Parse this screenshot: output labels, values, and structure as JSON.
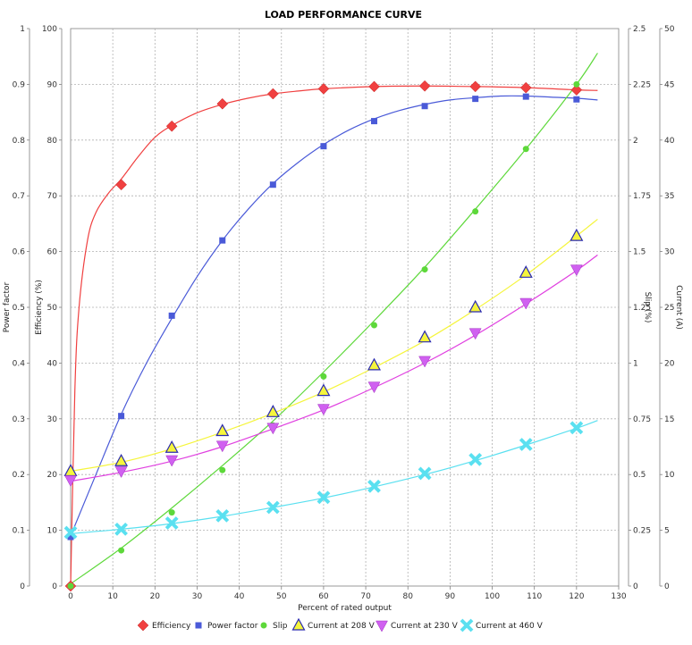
{
  "chart_data": {
    "type": "line",
    "title": "LOAD PERFORMANCE CURVE",
    "xlabel": "Percent of rated output",
    "xlim": [
      0,
      130
    ],
    "x_ticks": [
      0,
      10,
      20,
      30,
      40,
      50,
      60,
      70,
      80,
      90,
      100,
      110,
      120,
      130
    ],
    "axes": {
      "power_factor": {
        "label": "Power factor",
        "lim": [
          0,
          1
        ],
        "ticks": [
          "0",
          "0.1",
          "0.2",
          "0.3",
          "0.4",
          "0.5",
          "0.6",
          "0.7",
          "0.8",
          "0.9",
          "1"
        ]
      },
      "efficiency": {
        "label": "Efficiency (%)",
        "lim": [
          0,
          100
        ],
        "ticks": [
          "0",
          "10",
          "20",
          "30",
          "40",
          "50",
          "60",
          "70",
          "80",
          "90",
          "100"
        ]
      },
      "slip": {
        "label": "Slip (%)",
        "lim": [
          0,
          2.5
        ],
        "ticks": [
          "0",
          "0.25",
          "0.5",
          "0.75",
          "1",
          "1.25",
          "1.5",
          "1.75",
          "2",
          "2.25",
          "2.5"
        ]
      },
      "current": {
        "label": "Current (A)",
        "lim": [
          0,
          50
        ],
        "ticks": [
          "0",
          "5",
          "10",
          "15",
          "20",
          "25",
          "30",
          "35",
          "40",
          "45",
          "50"
        ]
      }
    },
    "grid": true,
    "legend_position": "bottom",
    "series": [
      {
        "name": "Efficiency",
        "axis": "efficiency",
        "color": "#f04040",
        "marker": "diamond",
        "points": [
          [
            0,
            0
          ],
          [
            12,
            72
          ],
          [
            24,
            82.5
          ],
          [
            36,
            86.5
          ],
          [
            48,
            88.3
          ],
          [
            60,
            89.2
          ],
          [
            72,
            89.6
          ],
          [
            84,
            89.7
          ],
          [
            96,
            89.6
          ],
          [
            108,
            89.4
          ],
          [
            120,
            89
          ]
        ],
        "curve": [
          [
            0,
            0
          ],
          [
            1,
            35
          ],
          [
            2,
            50
          ],
          [
            4,
            62
          ],
          [
            6,
            67
          ],
          [
            9,
            70.5
          ],
          [
            12,
            73
          ],
          [
            16,
            77
          ],
          [
            20,
            80.5
          ],
          [
            24,
            82.6
          ],
          [
            30,
            84.9
          ],
          [
            36,
            86.4
          ],
          [
            42,
            87.5
          ],
          [
            48,
            88.3
          ],
          [
            54,
            88.8
          ],
          [
            60,
            89.2
          ],
          [
            72,
            89.6
          ],
          [
            84,
            89.7
          ],
          [
            96,
            89.6
          ],
          [
            108,
            89.4
          ],
          [
            120,
            89
          ],
          [
            125,
            88.9
          ]
        ]
      },
      {
        "name": "Power factor",
        "axis": "power_factor",
        "color": "#4a5ad8",
        "marker": "square",
        "points": [
          [
            0,
            0.088
          ],
          [
            12,
            0.305
          ],
          [
            24,
            0.485
          ],
          [
            36,
            0.62
          ],
          [
            48,
            0.72
          ],
          [
            60,
            0.789
          ],
          [
            72,
            0.834
          ],
          [
            84,
            0.861
          ],
          [
            96,
            0.874
          ],
          [
            108,
            0.878
          ],
          [
            120,
            0.873
          ]
        ],
        "curve": [
          [
            0,
            0.09
          ],
          [
            6,
            0.2
          ],
          [
            12,
            0.308
          ],
          [
            18,
            0.4
          ],
          [
            24,
            0.48
          ],
          [
            30,
            0.555
          ],
          [
            36,
            0.62
          ],
          [
            42,
            0.675
          ],
          [
            48,
            0.722
          ],
          [
            54,
            0.76
          ],
          [
            60,
            0.792
          ],
          [
            66,
            0.818
          ],
          [
            72,
            0.838
          ],
          [
            78,
            0.853
          ],
          [
            84,
            0.864
          ],
          [
            90,
            0.872
          ],
          [
            96,
            0.876
          ],
          [
            102,
            0.879
          ],
          [
            108,
            0.879
          ],
          [
            114,
            0.877
          ],
          [
            120,
            0.875
          ],
          [
            125,
            0.872
          ]
        ]
      },
      {
        "name": "Slip",
        "axis": "slip",
        "color": "#5dd83a",
        "marker": "circle",
        "points": [
          [
            0,
            0
          ],
          [
            12,
            0.16
          ],
          [
            24,
            0.33
          ],
          [
            36,
            0.52
          ],
          [
            48,
            0.72
          ],
          [
            60,
            0.94
          ],
          [
            72,
            1.17
          ],
          [
            84,
            1.42
          ],
          [
            96,
            1.68
          ],
          [
            108,
            1.96
          ],
          [
            120,
            2.25
          ]
        ],
        "curve": [
          [
            0,
            0.01
          ],
          [
            12,
            0.17
          ],
          [
            24,
            0.35
          ],
          [
            36,
            0.54
          ],
          [
            48,
            0.74
          ],
          [
            60,
            0.96
          ],
          [
            72,
            1.19
          ],
          [
            84,
            1.43
          ],
          [
            96,
            1.69
          ],
          [
            108,
            1.96
          ],
          [
            120,
            2.25
          ],
          [
            125,
            2.39
          ]
        ]
      },
      {
        "name": "Current at 208 V",
        "axis": "current",
        "color": "#f5f53c",
        "marker": "triangle-up",
        "marker_stroke": "#2a2ab0",
        "points": [
          [
            0,
            10.3
          ],
          [
            12,
            11.2
          ],
          [
            24,
            12.4
          ],
          [
            36,
            13.9
          ],
          [
            48,
            15.6
          ],
          [
            60,
            17.5
          ],
          [
            72,
            19.8
          ],
          [
            84,
            22.3
          ],
          [
            96,
            25
          ],
          [
            108,
            28.1
          ],
          [
            120,
            31.4
          ]
        ],
        "curve": [
          [
            0,
            10.3
          ],
          [
            12,
            11.1
          ],
          [
            24,
            12.3
          ],
          [
            36,
            13.8
          ],
          [
            48,
            15.5
          ],
          [
            60,
            17.4
          ],
          [
            72,
            19.6
          ],
          [
            84,
            22
          ],
          [
            96,
            24.8
          ],
          [
            108,
            27.9
          ],
          [
            120,
            31.4
          ],
          [
            125,
            32.9
          ]
        ]
      },
      {
        "name": "Current at 230 V",
        "axis": "current",
        "color": "#e040e0",
        "marker": "triangle-down",
        "marker_fill": "#d060f0",
        "points": [
          [
            0,
            9.5
          ],
          [
            12,
            10.3
          ],
          [
            24,
            11.3
          ],
          [
            36,
            12.6
          ],
          [
            48,
            14.2
          ],
          [
            60,
            15.9
          ],
          [
            72,
            17.9
          ],
          [
            84,
            20.2
          ],
          [
            96,
            22.7
          ],
          [
            108,
            25.4
          ],
          [
            120,
            28.4
          ]
        ],
        "curve": [
          [
            0,
            9.4
          ],
          [
            12,
            10.2
          ],
          [
            24,
            11.2
          ],
          [
            36,
            12.5
          ],
          [
            48,
            14.1
          ],
          [
            60,
            15.8
          ],
          [
            72,
            17.8
          ],
          [
            84,
            20
          ],
          [
            96,
            22.5
          ],
          [
            108,
            25.3
          ],
          [
            120,
            28.3
          ],
          [
            125,
            29.7
          ]
        ]
      },
      {
        "name": "Current at 460 V",
        "axis": "current",
        "color": "#5ae0f0",
        "marker": "x",
        "points": [
          [
            0,
            4.8
          ],
          [
            12,
            5.1
          ],
          [
            24,
            5.65
          ],
          [
            36,
            6.3
          ],
          [
            48,
            7.05
          ],
          [
            60,
            7.95
          ],
          [
            72,
            8.95
          ],
          [
            84,
            10.1
          ],
          [
            96,
            11.35
          ],
          [
            108,
            12.7
          ],
          [
            120,
            14.2
          ]
        ],
        "curve": [
          [
            0,
            4.7
          ],
          [
            12,
            5.1
          ],
          [
            24,
            5.6
          ],
          [
            36,
            6.25
          ],
          [
            48,
            7.05
          ],
          [
            60,
            7.9
          ],
          [
            72,
            8.9
          ],
          [
            84,
            10
          ],
          [
            96,
            11.25
          ],
          [
            108,
            12.65
          ],
          [
            120,
            14.15
          ],
          [
            125,
            14.85
          ]
        ]
      }
    ]
  }
}
